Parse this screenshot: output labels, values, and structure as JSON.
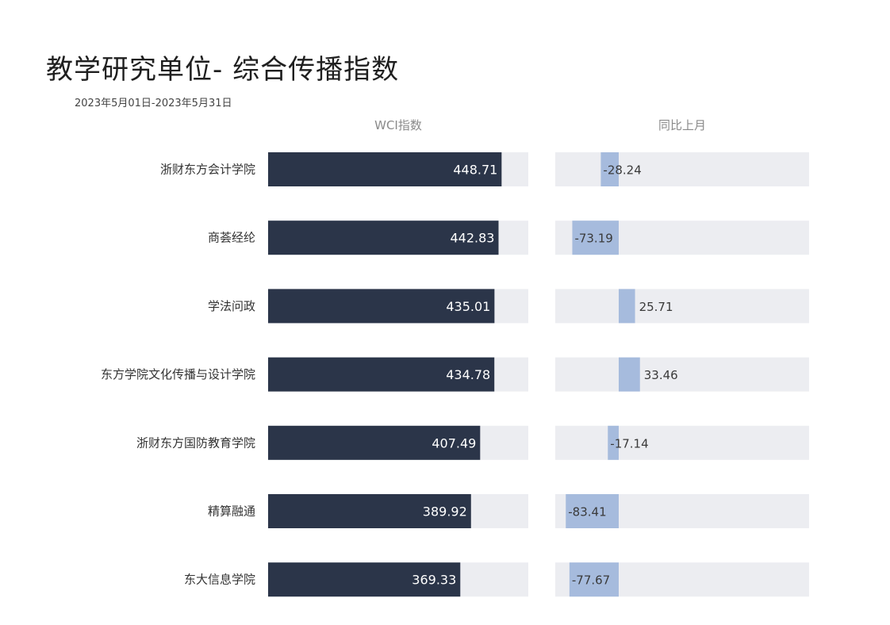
{
  "title": "教学研究单位- 综合传播指数",
  "subtitle": "2023年5月01日-2023年5月31日",
  "columns": {
    "wci": "WCI指数",
    "yoy": "同比上月"
  },
  "colors": {
    "wci_bar": "#2b3549",
    "track": "#ecedf1",
    "yoy_bar": "#a6bbdd"
  },
  "chart_data": {
    "type": "bar",
    "orientation": "horizontal",
    "categories": [
      "浙财东方会计学院",
      "商荟经纶",
      "学法问政",
      "东方学院文化传播与设计学院",
      "浙财东方国防教育学院",
      "精算融通",
      "东大信息学院"
    ],
    "series": [
      {
        "name": "WCI指数",
        "values": [
          448.71,
          442.83,
          435.01,
          434.78,
          407.49,
          389.92,
          369.33
        ]
      },
      {
        "name": "同比上月",
        "values": [
          -28.24,
          -73.19,
          25.71,
          33.46,
          -17.14,
          -83.41,
          -77.67
        ]
      }
    ],
    "wci_range": [
      0,
      500
    ],
    "yoy_range": [
      -100,
      300
    ],
    "grid": false,
    "legend": "none"
  }
}
